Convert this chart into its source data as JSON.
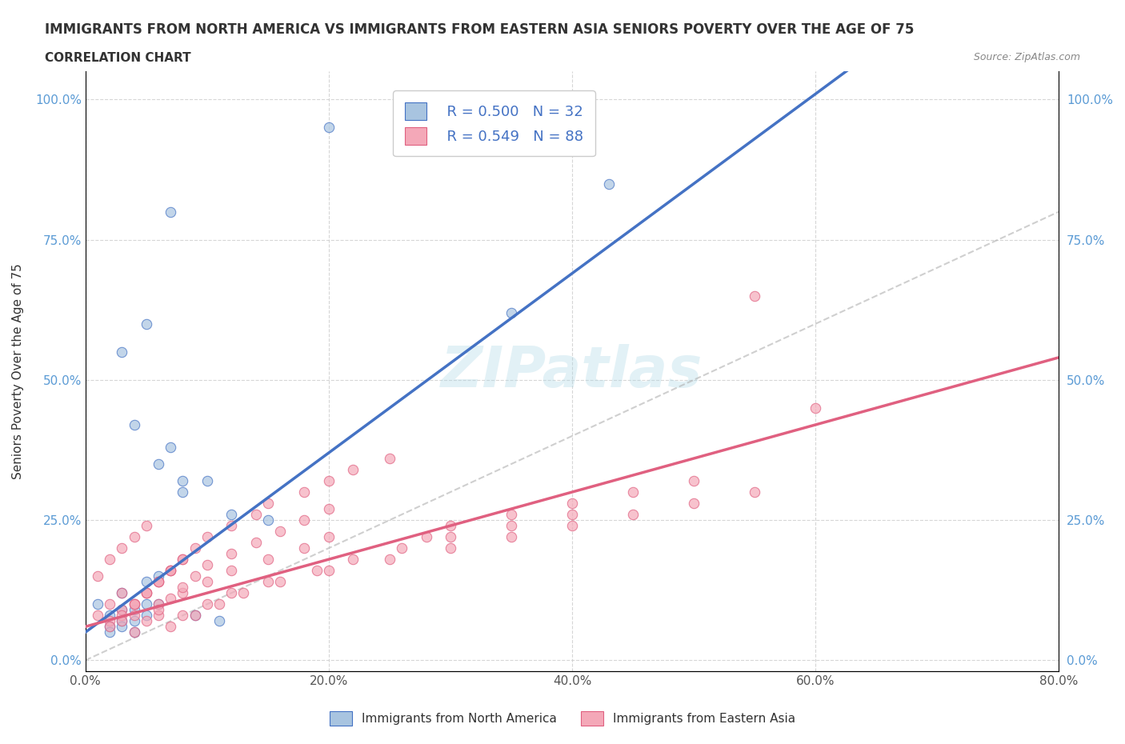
{
  "title": "IMMIGRANTS FROM NORTH AMERICA VS IMMIGRANTS FROM EASTERN ASIA SENIORS POVERTY OVER THE AGE OF 75",
  "subtitle": "CORRELATION CHART",
  "source": "Source: ZipAtlas.com",
  "xlabel": "",
  "ylabel": "Seniors Poverty Over the Age of 75",
  "xticklabels": [
    "0.0%",
    "20.0%",
    "40.0%",
    "60.0%",
    "80.0%"
  ],
  "yticklabels": [
    "0.0%",
    "25.0%",
    "50.0%",
    "75.0%",
    "100.0%"
  ],
  "xlim": [
    0.0,
    0.8
  ],
  "ylim": [
    -0.02,
    1.05
  ],
  "legend_r1": "R = 0.500",
  "legend_n1": "N = 32",
  "legend_r2": "R = 0.549",
  "legend_n2": "N = 88",
  "color_blue": "#a8c4e0",
  "color_pink": "#f4a8b8",
  "line_blue": "#4472c4",
  "line_pink": "#e06080",
  "line_gray": "#b0b0b0",
  "background": "#ffffff",
  "watermark": "ZIPatlas",
  "north_america_x": [
    0.02,
    0.03,
    0.04,
    0.01,
    0.02,
    0.03,
    0.04,
    0.05,
    0.06,
    0.07,
    0.08,
    0.03,
    0.04,
    0.05,
    0.1,
    0.12,
    0.08,
    0.06,
    0.15,
    0.2,
    0.07,
    0.05,
    0.03,
    0.09,
    0.11,
    0.06,
    0.04,
    0.43,
    0.35,
    0.02,
    0.03,
    0.05
  ],
  "north_america_y": [
    0.08,
    0.12,
    0.07,
    0.1,
    0.06,
    0.09,
    0.05,
    0.14,
    0.35,
    0.38,
    0.32,
    0.55,
    0.42,
    0.6,
    0.32,
    0.26,
    0.3,
    0.15,
    0.25,
    0.95,
    0.8,
    0.08,
    0.07,
    0.08,
    0.07,
    0.1,
    0.09,
    0.85,
    0.62,
    0.05,
    0.06,
    0.1
  ],
  "eastern_asia_x": [
    0.01,
    0.02,
    0.03,
    0.01,
    0.02,
    0.03,
    0.04,
    0.05,
    0.06,
    0.07,
    0.02,
    0.03,
    0.04,
    0.05,
    0.06,
    0.04,
    0.05,
    0.06,
    0.07,
    0.08,
    0.09,
    0.1,
    0.12,
    0.14,
    0.15,
    0.18,
    0.2,
    0.22,
    0.25,
    0.28,
    0.3,
    0.35,
    0.4,
    0.45,
    0.5,
    0.55,
    0.02,
    0.03,
    0.04,
    0.05,
    0.06,
    0.07,
    0.08,
    0.03,
    0.04,
    0.06,
    0.08,
    0.1,
    0.12,
    0.15,
    0.18,
    0.2,
    0.08,
    0.1,
    0.12,
    0.15,
    0.2,
    0.25,
    0.3,
    0.35,
    0.4,
    0.45,
    0.07,
    0.09,
    0.11,
    0.13,
    0.16,
    0.19,
    0.22,
    0.26,
    0.3,
    0.35,
    0.4,
    0.5,
    0.55,
    0.6,
    0.04,
    0.05,
    0.06,
    0.07,
    0.08,
    0.09,
    0.1,
    0.12,
    0.14,
    0.16,
    0.18,
    0.2
  ],
  "eastern_asia_y": [
    0.08,
    0.1,
    0.12,
    0.15,
    0.07,
    0.09,
    0.1,
    0.12,
    0.14,
    0.16,
    0.18,
    0.2,
    0.22,
    0.24,
    0.08,
    0.1,
    0.12,
    0.14,
    0.16,
    0.18,
    0.2,
    0.22,
    0.24,
    0.26,
    0.28,
    0.3,
    0.32,
    0.34,
    0.36,
    0.22,
    0.24,
    0.26,
    0.28,
    0.3,
    0.32,
    0.65,
    0.06,
    0.08,
    0.1,
    0.12,
    0.14,
    0.16,
    0.18,
    0.07,
    0.08,
    0.1,
    0.12,
    0.14,
    0.16,
    0.18,
    0.2,
    0.22,
    0.08,
    0.1,
    0.12,
    0.14,
    0.16,
    0.18,
    0.2,
    0.22,
    0.24,
    0.26,
    0.06,
    0.08,
    0.1,
    0.12,
    0.14,
    0.16,
    0.18,
    0.2,
    0.22,
    0.24,
    0.26,
    0.28,
    0.3,
    0.45,
    0.05,
    0.07,
    0.09,
    0.11,
    0.13,
    0.15,
    0.17,
    0.19,
    0.21,
    0.23,
    0.25,
    0.27
  ]
}
